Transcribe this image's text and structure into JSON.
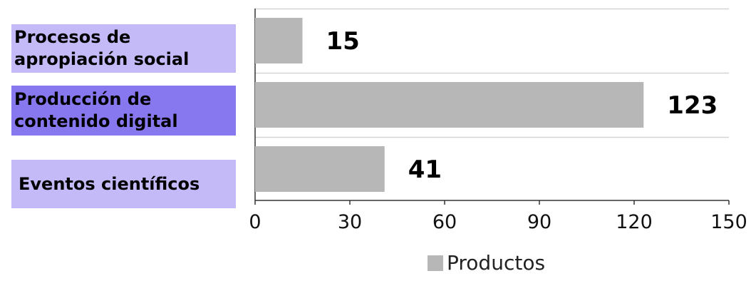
{
  "chart_data": {
    "type": "bar",
    "orientation": "horizontal",
    "categories": [
      "Procesos de\n apropiación social",
      "Producción de\ncontenido digital",
      "Eventos científicos"
    ],
    "series": [
      {
        "name": "Productos",
        "values": [
          15,
          123,
          41
        ],
        "color": "#b7b7b7"
      }
    ],
    "xlim": [
      0,
      150
    ],
    "xticks": [
      0,
      30,
      60,
      90,
      120,
      150
    ],
    "grid": true,
    "legend_position": "bottom",
    "category_box_colors": [
      "#c3baf7",
      "#8878ef",
      "#c3baf7"
    ],
    "title": "",
    "xlabel": "",
    "ylabel": ""
  }
}
